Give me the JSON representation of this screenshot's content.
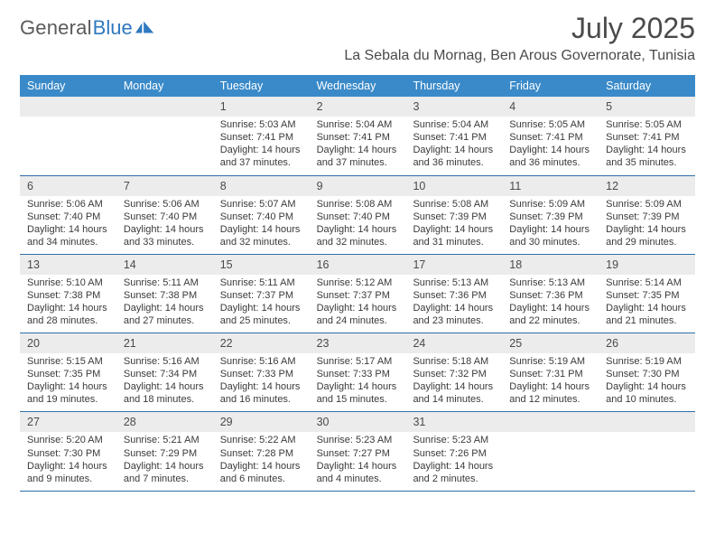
{
  "brand": {
    "word1": "General",
    "word2": "Blue"
  },
  "title": "July 2025",
  "location": "La Sebala du Mornag, Ben Arous Governorate, Tunisia",
  "colors": {
    "header_bg": "#3a8ac9",
    "header_text": "#ffffff",
    "rule": "#2f6fa8",
    "daynum_bg": "#ececec",
    "text": "#3a3a3a",
    "brand_blue": "#2f79bf",
    "brand_gray": "#5a5a5a",
    "page_bg": "#ffffff"
  },
  "weekdays": [
    "Sunday",
    "Monday",
    "Tuesday",
    "Wednesday",
    "Thursday",
    "Friday",
    "Saturday"
  ],
  "weeks": [
    [
      {
        "n": "",
        "sunrise": "",
        "sunset": "",
        "daylight": ""
      },
      {
        "n": "",
        "sunrise": "",
        "sunset": "",
        "daylight": ""
      },
      {
        "n": "1",
        "sunrise": "Sunrise: 5:03 AM",
        "sunset": "Sunset: 7:41 PM",
        "daylight": "Daylight: 14 hours and 37 minutes."
      },
      {
        "n": "2",
        "sunrise": "Sunrise: 5:04 AM",
        "sunset": "Sunset: 7:41 PM",
        "daylight": "Daylight: 14 hours and 37 minutes."
      },
      {
        "n": "3",
        "sunrise": "Sunrise: 5:04 AM",
        "sunset": "Sunset: 7:41 PM",
        "daylight": "Daylight: 14 hours and 36 minutes."
      },
      {
        "n": "4",
        "sunrise": "Sunrise: 5:05 AM",
        "sunset": "Sunset: 7:41 PM",
        "daylight": "Daylight: 14 hours and 36 minutes."
      },
      {
        "n": "5",
        "sunrise": "Sunrise: 5:05 AM",
        "sunset": "Sunset: 7:41 PM",
        "daylight": "Daylight: 14 hours and 35 minutes."
      }
    ],
    [
      {
        "n": "6",
        "sunrise": "Sunrise: 5:06 AM",
        "sunset": "Sunset: 7:40 PM",
        "daylight": "Daylight: 14 hours and 34 minutes."
      },
      {
        "n": "7",
        "sunrise": "Sunrise: 5:06 AM",
        "sunset": "Sunset: 7:40 PM",
        "daylight": "Daylight: 14 hours and 33 minutes."
      },
      {
        "n": "8",
        "sunrise": "Sunrise: 5:07 AM",
        "sunset": "Sunset: 7:40 PM",
        "daylight": "Daylight: 14 hours and 32 minutes."
      },
      {
        "n": "9",
        "sunrise": "Sunrise: 5:08 AM",
        "sunset": "Sunset: 7:40 PM",
        "daylight": "Daylight: 14 hours and 32 minutes."
      },
      {
        "n": "10",
        "sunrise": "Sunrise: 5:08 AM",
        "sunset": "Sunset: 7:39 PM",
        "daylight": "Daylight: 14 hours and 31 minutes."
      },
      {
        "n": "11",
        "sunrise": "Sunrise: 5:09 AM",
        "sunset": "Sunset: 7:39 PM",
        "daylight": "Daylight: 14 hours and 30 minutes."
      },
      {
        "n": "12",
        "sunrise": "Sunrise: 5:09 AM",
        "sunset": "Sunset: 7:39 PM",
        "daylight": "Daylight: 14 hours and 29 minutes."
      }
    ],
    [
      {
        "n": "13",
        "sunrise": "Sunrise: 5:10 AM",
        "sunset": "Sunset: 7:38 PM",
        "daylight": "Daylight: 14 hours and 28 minutes."
      },
      {
        "n": "14",
        "sunrise": "Sunrise: 5:11 AM",
        "sunset": "Sunset: 7:38 PM",
        "daylight": "Daylight: 14 hours and 27 minutes."
      },
      {
        "n": "15",
        "sunrise": "Sunrise: 5:11 AM",
        "sunset": "Sunset: 7:37 PM",
        "daylight": "Daylight: 14 hours and 25 minutes."
      },
      {
        "n": "16",
        "sunrise": "Sunrise: 5:12 AM",
        "sunset": "Sunset: 7:37 PM",
        "daylight": "Daylight: 14 hours and 24 minutes."
      },
      {
        "n": "17",
        "sunrise": "Sunrise: 5:13 AM",
        "sunset": "Sunset: 7:36 PM",
        "daylight": "Daylight: 14 hours and 23 minutes."
      },
      {
        "n": "18",
        "sunrise": "Sunrise: 5:13 AM",
        "sunset": "Sunset: 7:36 PM",
        "daylight": "Daylight: 14 hours and 22 minutes."
      },
      {
        "n": "19",
        "sunrise": "Sunrise: 5:14 AM",
        "sunset": "Sunset: 7:35 PM",
        "daylight": "Daylight: 14 hours and 21 minutes."
      }
    ],
    [
      {
        "n": "20",
        "sunrise": "Sunrise: 5:15 AM",
        "sunset": "Sunset: 7:35 PM",
        "daylight": "Daylight: 14 hours and 19 minutes."
      },
      {
        "n": "21",
        "sunrise": "Sunrise: 5:16 AM",
        "sunset": "Sunset: 7:34 PM",
        "daylight": "Daylight: 14 hours and 18 minutes."
      },
      {
        "n": "22",
        "sunrise": "Sunrise: 5:16 AM",
        "sunset": "Sunset: 7:33 PM",
        "daylight": "Daylight: 14 hours and 16 minutes."
      },
      {
        "n": "23",
        "sunrise": "Sunrise: 5:17 AM",
        "sunset": "Sunset: 7:33 PM",
        "daylight": "Daylight: 14 hours and 15 minutes."
      },
      {
        "n": "24",
        "sunrise": "Sunrise: 5:18 AM",
        "sunset": "Sunset: 7:32 PM",
        "daylight": "Daylight: 14 hours and 14 minutes."
      },
      {
        "n": "25",
        "sunrise": "Sunrise: 5:19 AM",
        "sunset": "Sunset: 7:31 PM",
        "daylight": "Daylight: 14 hours and 12 minutes."
      },
      {
        "n": "26",
        "sunrise": "Sunrise: 5:19 AM",
        "sunset": "Sunset: 7:30 PM",
        "daylight": "Daylight: 14 hours and 10 minutes."
      }
    ],
    [
      {
        "n": "27",
        "sunrise": "Sunrise: 5:20 AM",
        "sunset": "Sunset: 7:30 PM",
        "daylight": "Daylight: 14 hours and 9 minutes."
      },
      {
        "n": "28",
        "sunrise": "Sunrise: 5:21 AM",
        "sunset": "Sunset: 7:29 PM",
        "daylight": "Daylight: 14 hours and 7 minutes."
      },
      {
        "n": "29",
        "sunrise": "Sunrise: 5:22 AM",
        "sunset": "Sunset: 7:28 PM",
        "daylight": "Daylight: 14 hours and 6 minutes."
      },
      {
        "n": "30",
        "sunrise": "Sunrise: 5:23 AM",
        "sunset": "Sunset: 7:27 PM",
        "daylight": "Daylight: 14 hours and 4 minutes."
      },
      {
        "n": "31",
        "sunrise": "Sunrise: 5:23 AM",
        "sunset": "Sunset: 7:26 PM",
        "daylight": "Daylight: 14 hours and 2 minutes."
      },
      {
        "n": "",
        "sunrise": "",
        "sunset": "",
        "daylight": ""
      },
      {
        "n": "",
        "sunrise": "",
        "sunset": "",
        "daylight": ""
      }
    ]
  ]
}
